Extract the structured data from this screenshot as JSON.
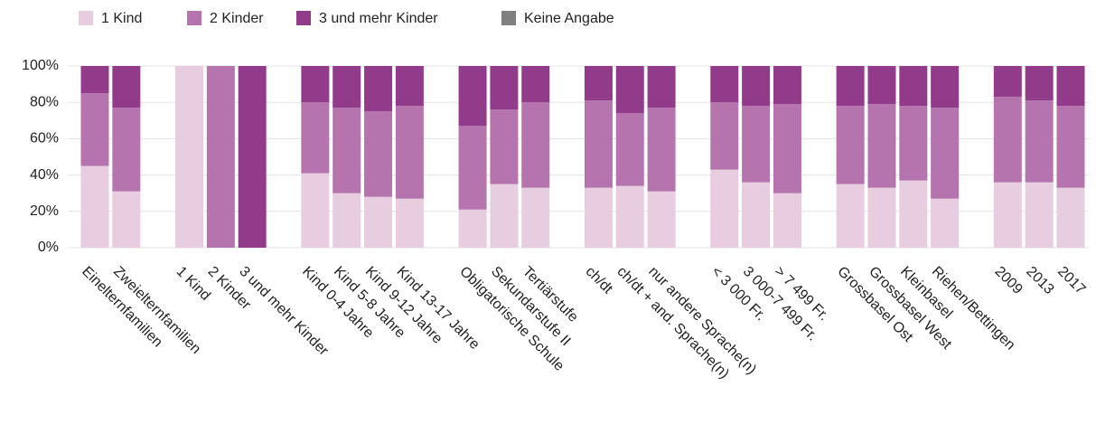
{
  "chart_data": {
    "type": "stacked_bar",
    "categories": [
      "Einelternfamilien",
      "Zweielternfamilien",
      null,
      "1 Kind",
      "2 Kinder",
      "3 und mehr Kinder",
      null,
      "Kind 0-4 Jahre",
      "Kind 5-8 Jahre",
      "Kind 9-12 Jahre",
      "Kind 13-17 Jahre",
      null,
      "Obligatorische Schule",
      "Sekundarstufe II",
      "Tertiärstufe",
      null,
      "ch/dt",
      "ch/dt + and. Sprache(n)",
      "nur andere Sprache(n)",
      null,
      "< 3 000 Fr.",
      "3 000-7 499 Fr.",
      "> 7 499 Fr.",
      null,
      "Grossbasel Ost",
      "Grossbasel West",
      "Kleinbasel",
      "Riehen/Bettingen",
      null,
      "2009",
      "2013",
      "2017"
    ],
    "series": [
      {
        "name": "1 Kind",
        "color": "#e8cce0",
        "values": [
          45,
          31,
          null,
          100,
          0,
          0,
          null,
          41,
          30,
          28,
          27,
          null,
          21,
          35,
          33,
          null,
          33,
          34,
          31,
          null,
          43,
          36,
          30,
          null,
          35,
          33,
          37,
          27,
          null,
          36,
          36,
          33
        ]
      },
      {
        "name": "2 Kinder",
        "color": "#b574ad",
        "values": [
          40,
          46,
          null,
          0,
          100,
          0,
          null,
          39,
          47,
          47,
          51,
          null,
          46,
          41,
          47,
          null,
          48,
          40,
          46,
          null,
          37,
          42,
          49,
          null,
          43,
          46,
          41,
          50,
          null,
          47,
          45,
          45
        ]
      },
      {
        "name": "3 und mehr Kinder",
        "color": "#923b8a",
        "values": [
          15,
          23,
          null,
          0,
          0,
          100,
          null,
          20,
          23,
          25,
          22,
          null,
          33,
          24,
          20,
          null,
          19,
          26,
          23,
          null,
          20,
          22,
          21,
          null,
          22,
          21,
          22,
          23,
          null,
          17,
          19,
          22
        ]
      },
      {
        "name": "Keine Angabe",
        "color": "#808080",
        "values": [
          0,
          0,
          null,
          0,
          0,
          0,
          null,
          0,
          0,
          0,
          0,
          null,
          0,
          0,
          0,
          null,
          0,
          0,
          0,
          null,
          0,
          0,
          0,
          null,
          0,
          0,
          0,
          0,
          null,
          0,
          0,
          0
        ]
      }
    ],
    "ylim": [
      0,
      100
    ],
    "yticks": [
      {
        "value": 0,
        "label": "0%"
      },
      {
        "value": 20,
        "label": "20%"
      },
      {
        "value": 40,
        "label": "40%"
      },
      {
        "value": 60,
        "label": "60%"
      },
      {
        "value": 80,
        "label": "80%"
      },
      {
        "value": 100,
        "label": "100%"
      }
    ],
    "grid": true,
    "legend": "top"
  }
}
